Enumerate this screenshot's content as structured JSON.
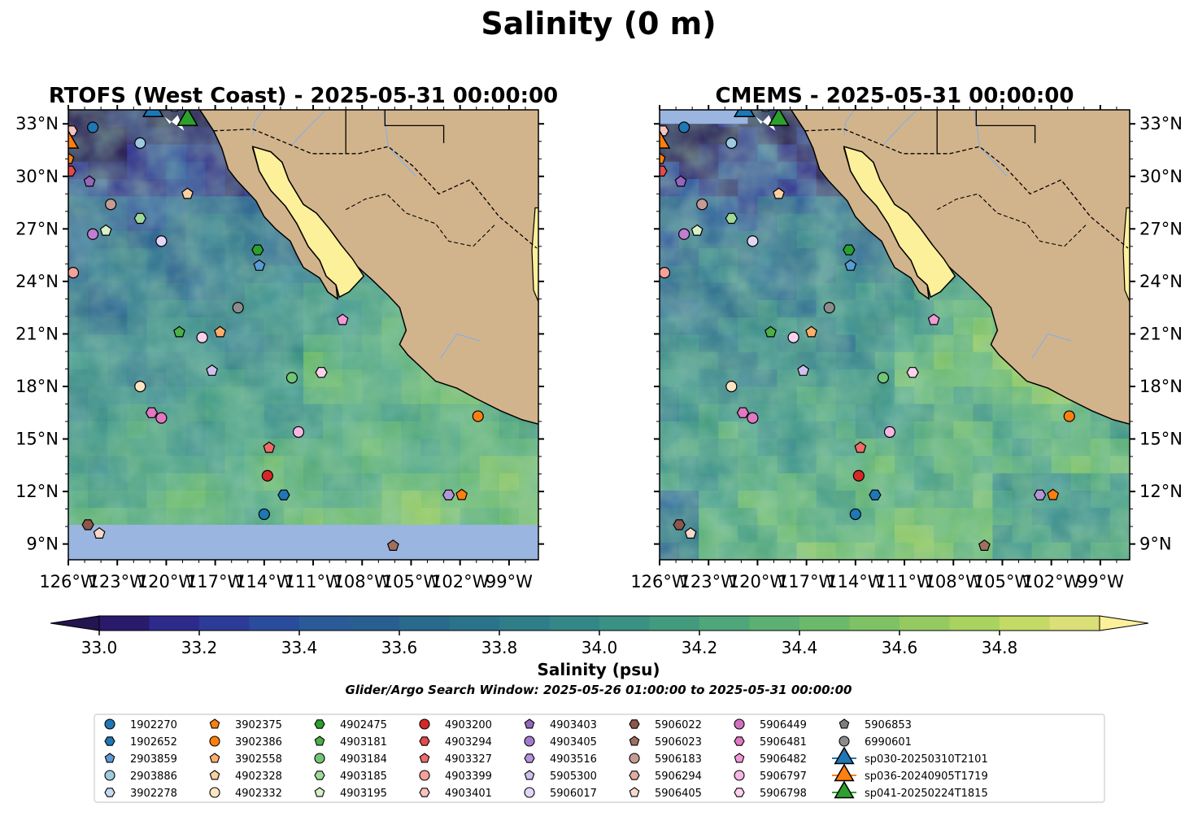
{
  "figure": {
    "title": "Salinity (0 m)",
    "window_note": "Glider/Argo Search Window: 2025-05-26 01:00:00 to 2025-05-31 00:00:00"
  },
  "panels": [
    {
      "id": "rtofs",
      "title": "RTOFS (West Coast) - 2025-05-31 00:00:00",
      "ylabels_side": "left"
    },
    {
      "id": "cmems",
      "title": "CMEMS - 2025-05-31 00:00:00",
      "ylabels_side": "right"
    }
  ],
  "colors": {
    "land": "#d2b48c",
    "ocean_nodata": "#99b5e0",
    "river": "#8fb0d8"
  },
  "chart_data": {
    "type": "heatmap",
    "variable": "Salinity (0 m)",
    "x_ticks": [
      -126,
      -123,
      -120,
      -117,
      -114,
      -111,
      -108,
      -105,
      -102,
      -99
    ],
    "x_tick_labels": [
      "126°W",
      "123°W",
      "120°W",
      "117°W",
      "114°W",
      "111°W",
      "108°W",
      "105°W",
      "102°W",
      "99°W"
    ],
    "y_ticks": [
      9,
      12,
      15,
      18,
      21,
      24,
      27,
      30,
      33
    ],
    "y_tick_labels": [
      "9°N",
      "12°N",
      "15°N",
      "18°N",
      "21°N",
      "24°N",
      "27°N",
      "30°N",
      "33°N"
    ],
    "xlim": [
      -126,
      -97.2
    ],
    "ylim": [
      8.1,
      33.8
    ],
    "colorbar": {
      "label": "Salinity (psu)",
      "levels": [
        33.0,
        33.1,
        33.2,
        33.3,
        33.4,
        33.5,
        33.6,
        33.7,
        33.8,
        33.9,
        34.0,
        34.1,
        34.2,
        34.3,
        34.4,
        34.5,
        34.6,
        34.7,
        34.8,
        34.9
      ],
      "colors": [
        "#2a1a6b",
        "#2e2a8c",
        "#2d3b98",
        "#2a4c9c",
        "#2b5a98",
        "#285f90",
        "#29698c",
        "#2b738b",
        "#2f7d89",
        "#348787",
        "#3a9184",
        "#439b7f",
        "#4fa67a",
        "#5db073",
        "#6bba6b",
        "#7fc265",
        "#94ca61",
        "#aad25f",
        "#c4da66",
        "#dadf77"
      ],
      "under_color": "#24144f",
      "over_color": "#fdf09a",
      "extend": "both",
      "tick_values": [
        33.0,
        33.2,
        33.4,
        33.6,
        33.8,
        34.0,
        34.2,
        34.4,
        34.6,
        34.8
      ],
      "tick_labels": [
        "33.0",
        "33.2",
        "33.4",
        "33.6",
        "33.8",
        "34.0",
        "34.2",
        "34.4",
        "34.6",
        "34.8"
      ]
    },
    "platforms": [
      {
        "name": "1902270",
        "lon": -124.5,
        "lat": 32.8,
        "marker": "circle",
        "color": "#1f77b4"
      },
      {
        "name": "1902652",
        "lon": -112.8,
        "lat": 11.8,
        "marker": "hexagon",
        "color": "#1f77b4"
      },
      {
        "name": "2903859",
        "lon": -114.3,
        "lat": 24.9,
        "marker": "pentagon",
        "color": "#5a9bd4"
      },
      {
        "name": "2903886",
        "lon": -121.6,
        "lat": 31.9,
        "marker": "circle",
        "color": "#9ecae1"
      },
      {
        "name": "3902278",
        "lon": -119.5,
        "lat": 34.0,
        "marker": "hexagon",
        "color": "#c6dbef"
      },
      {
        "name": "3902375",
        "lon": -126.0,
        "lat": 31.0,
        "marker": "pentagon",
        "color": "#ff7f0e"
      },
      {
        "name": "3902386",
        "lon": -100.9,
        "lat": 16.3,
        "marker": "circle",
        "color": "#ff7f0e"
      },
      {
        "name": "3902558",
        "lon": -116.7,
        "lat": 21.1,
        "marker": "pentagon",
        "color": "#fdae6b"
      },
      {
        "name": "4902328",
        "lon": -118.7,
        "lat": 29.0,
        "marker": "pentagon",
        "color": "#fdd0a2"
      },
      {
        "name": "4902332",
        "lon": -121.6,
        "lat": 18.0,
        "marker": "circle",
        "color": "#fde5c4"
      },
      {
        "name": "4902475",
        "lon": -114.4,
        "lat": 25.8,
        "marker": "hexagon",
        "color": "#2ca02c"
      },
      {
        "name": "4903181",
        "lon": -119.2,
        "lat": 21.1,
        "marker": "pentagon",
        "color": "#4daf4a"
      },
      {
        "name": "4903184",
        "lon": -112.3,
        "lat": 18.5,
        "marker": "circle",
        "color": "#74c476"
      },
      {
        "name": "4903185",
        "lon": -121.6,
        "lat": 27.6,
        "marker": "hexagon",
        "color": "#a1d99b"
      },
      {
        "name": "4903195",
        "lon": -123.7,
        "lat": 26.9,
        "marker": "pentagon",
        "color": "#d9f0c7"
      },
      {
        "name": "4903200",
        "lon": -113.8,
        "lat": 12.9,
        "marker": "circle",
        "color": "#d62728"
      },
      {
        "name": "4903294",
        "lon": -125.9,
        "lat": 30.3,
        "marker": "hexagon",
        "color": "#e34a4b"
      },
      {
        "name": "4903327",
        "lon": -113.7,
        "lat": 14.5,
        "marker": "pentagon",
        "color": "#ef6b6b"
      },
      {
        "name": "4903399",
        "lon": -125.7,
        "lat": 24.5,
        "marker": "circle",
        "color": "#f4a09c"
      },
      {
        "name": "4903401",
        "lon": -125.8,
        "lat": 32.6,
        "marker": "hexagon",
        "color": "#f6c3bf"
      },
      {
        "name": "4903403",
        "lon": -106.0,
        "lat": 34.5,
        "marker": "pentagon",
        "color": "#9467bd"
      },
      {
        "name": "4903405",
        "lon": -124.0,
        "lat": 34.5,
        "marker": "circle",
        "color": "#a27ccb"
      },
      {
        "name": "4903516",
        "lon": -102.7,
        "lat": 11.8,
        "marker": "hexagon",
        "color": "#b395d8"
      },
      {
        "name": "5905300",
        "lon": -117.2,
        "lat": 18.9,
        "marker": "pentagon",
        "color": "#cfc0ee"
      },
      {
        "name": "5906017",
        "lon": -120.3,
        "lat": 26.3,
        "marker": "circle",
        "color": "#e3d6f5"
      },
      {
        "name": "5906022",
        "lon": -124.8,
        "lat": 10.1,
        "marker": "hexagon",
        "color": "#8c564b"
      },
      {
        "name": "5906023",
        "lon": -106.1,
        "lat": 8.9,
        "marker": "pentagon",
        "color": "#a0705f"
      },
      {
        "name": "5906183",
        "lon": -123.4,
        "lat": 28.4,
        "marker": "circle",
        "color": "#c49c94"
      },
      {
        "name": "5906294",
        "lon": -116.0,
        "lat": 34.5,
        "marker": "hexagon",
        "color": "#e3aca0"
      },
      {
        "name": "5906405",
        "lon": -124.1,
        "lat": 9.6,
        "marker": "pentagon",
        "color": "#f7d9cc"
      },
      {
        "name": "5906449",
        "lon": -122.8,
        "lat": 34.5,
        "marker": "circle",
        "color": "#d26fbf"
      },
      {
        "name": "5906481",
        "lon": -120.9,
        "lat": 16.5,
        "marker": "hexagon",
        "color": "#e377c2"
      },
      {
        "name": "5906482",
        "lon": -109.2,
        "lat": 21.8,
        "marker": "pentagon",
        "color": "#f29ad6"
      },
      {
        "name": "5906797",
        "lon": -111.9,
        "lat": 15.4,
        "marker": "circle",
        "color": "#f7b6e3"
      },
      {
        "name": "5906798",
        "lon": -110.5,
        "lat": 18.8,
        "marker": "hexagon",
        "color": "#fbd1ee"
      },
      {
        "name": "5906853",
        "lon": -101.0,
        "lat": 34.6,
        "marker": "pentagon",
        "color": "#7f7f7f"
      },
      {
        "name": "6990601",
        "lon": -115.6,
        "lat": 22.5,
        "marker": "circle",
        "color": "#8c8c8c"
      },
      {
        "name": "extra-circle-a",
        "lon": -117.8,
        "lat": 20.8,
        "marker": "circle",
        "color": "#fbd1ee",
        "legend": false
      },
      {
        "name": "extra-circle-b",
        "lon": -120.3,
        "lat": 16.2,
        "marker": "circle",
        "color": "#e377c2",
        "legend": false
      },
      {
        "name": "extra-circle-c",
        "lon": -124.5,
        "lat": 26.7,
        "marker": "circle",
        "color": "#c07fd0",
        "legend": false
      },
      {
        "name": "extra-circle-d",
        "lon": -114.0,
        "lat": 10.7,
        "marker": "circle",
        "color": "#1f77b4",
        "legend": false
      },
      {
        "name": "extra-pent-a",
        "lon": -124.7,
        "lat": 29.7,
        "marker": "pentagon",
        "color": "#9467bd",
        "legend": false
      },
      {
        "name": "extra-pent-b",
        "lon": -101.9,
        "lat": 11.8,
        "marker": "pentagon",
        "color": "#ff7f0e",
        "legend": false
      }
    ],
    "gliders": [
      {
        "name": "sp030-20250310T2101",
        "lon": -120.8,
        "lat": 33.6,
        "color": "#1f77b4"
      },
      {
        "name": "sp036-20240905T1719",
        "lon": -126.0,
        "lat": 31.8,
        "color": "#ff7f0e"
      },
      {
        "name": "sp041-20250224T1815",
        "lon": -118.7,
        "lat": 33.1,
        "color": "#2ca02c"
      }
    ],
    "grid": false,
    "legend_position": "bottom"
  }
}
